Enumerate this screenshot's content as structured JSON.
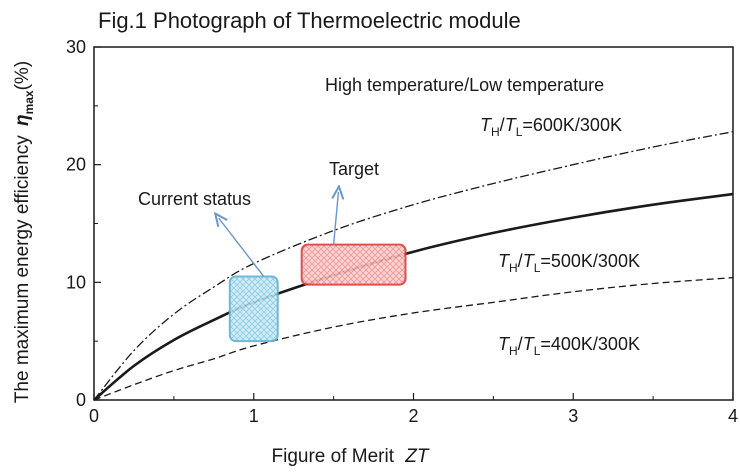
{
  "chart_data": {
    "type": "line",
    "title": "Fig.1 Photograph of Thermoelectric module",
    "xlabel": "Figure of Merit",
    "xlabel_var": "ZT",
    "ylabel": "The maximum energy efficiency",
    "ylabel_var": "η",
    "ylabel_sub": "max",
    "ylabel_unit": "(%)",
    "xlim": [
      0,
      4
    ],
    "ylim": [
      0,
      30
    ],
    "xticks": [
      "0",
      "1",
      "2",
      "3",
      "4"
    ],
    "yticks": [
      "0",
      "10",
      "20",
      "30"
    ],
    "grid": false,
    "series": [
      {
        "name": "T_H/T_L=600K/300K",
        "style": "dash-dot",
        "x": [
          0,
          0.25,
          0.5,
          0.75,
          1,
          1.5,
          2,
          2.5,
          3,
          3.5,
          4
        ],
        "values": [
          0,
          4.2,
          7.3,
          9.6,
          11.6,
          14.4,
          16.6,
          18.4,
          20.0,
          21.5,
          22.8
        ]
      },
      {
        "name": "T_H/T_L=500K/300K",
        "style": "solid",
        "x": [
          0,
          0.25,
          0.5,
          0.75,
          1,
          1.5,
          2,
          2.5,
          3,
          3.5,
          4
        ],
        "values": [
          0,
          2.9,
          5.1,
          6.8,
          8.3,
          10.6,
          12.6,
          14.2,
          15.5,
          16.6,
          17.5
        ]
      },
      {
        "name": "T_H/T_L=400K/300K",
        "style": "dashed",
        "x": [
          0,
          0.25,
          0.5,
          0.75,
          1,
          1.5,
          2,
          2.5,
          3,
          3.5,
          4
        ],
        "values": [
          0,
          1.3,
          2.5,
          3.5,
          4.6,
          6.2,
          7.4,
          8.3,
          9.2,
          9.9,
          10.4
        ]
      }
    ],
    "annotations": {
      "header": "High temperature/Low temperature",
      "current_status": "Current status",
      "target": "Target",
      "labels": [
        {
          "T1": "T",
          "s1": "H",
          "T2": "T",
          "s2": "L",
          "text": "=600K/300K"
        },
        {
          "T1": "T",
          "s1": "H",
          "T2": "T",
          "s2": "L",
          "text": "=500K/300K"
        },
        {
          "T1": "T",
          "s1": "H",
          "T2": "T",
          "s2": "L",
          "text": "=400K/300K"
        }
      ]
    },
    "regions": {
      "current_status": {
        "x": [
          0.85,
          1.15
        ],
        "y": [
          5,
          10.5
        ],
        "color": "#7ec8e3",
        "border": "#5fb3d4"
      },
      "target": {
        "x": [
          1.3,
          1.95
        ],
        "y": [
          9.8,
          13.2
        ],
        "color": "#f28b8b",
        "border": "#e03a3a"
      }
    },
    "arrow_color": "#6a95c8"
  }
}
